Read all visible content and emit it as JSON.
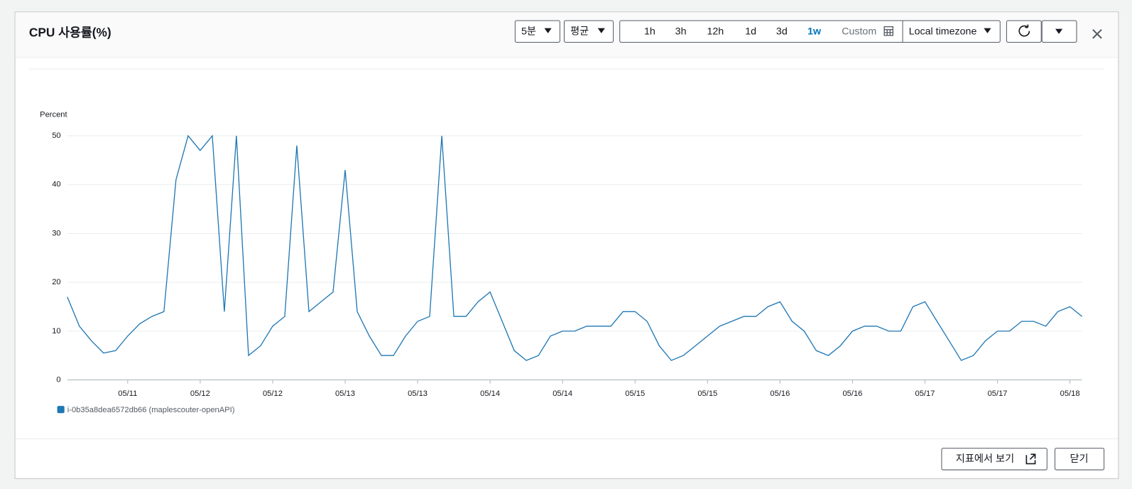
{
  "ui": {
    "title": "CPU 사용률(%)",
    "period": "5분",
    "statistic": "평균",
    "ranges": [
      "1h",
      "3h",
      "12h",
      "1d",
      "3d",
      "1w"
    ],
    "custom": "Custom",
    "timezone": "Local timezone",
    "footer_buttons": [
      "지표에서 보기",
      "닫기"
    ]
  },
  "chart_data": {
    "type": "line",
    "ylabel": "Percent",
    "categories": [
      null,
      null,
      null,
      null,
      null,
      "05/11",
      null,
      null,
      null,
      null,
      null,
      "05/12",
      null,
      null,
      null,
      null,
      null,
      "05/12",
      null,
      null,
      null,
      null,
      null,
      "05/13",
      null,
      null,
      null,
      null,
      null,
      "05/13",
      null,
      null,
      null,
      null,
      null,
      "05/14",
      null,
      null,
      null,
      null,
      null,
      "05/14",
      null,
      null,
      null,
      null,
      null,
      "05/15",
      null,
      null,
      null,
      null,
      null,
      "05/15",
      null,
      null,
      null,
      null,
      null,
      "05/16",
      null,
      null,
      null,
      null,
      null,
      "05/16",
      null,
      null,
      null,
      null,
      null,
      "05/17",
      null,
      null,
      null,
      null,
      null,
      "05/17",
      null,
      null,
      null,
      null,
      null,
      "05/18",
      null
    ],
    "series": [
      {
        "name": "i-0b35a8dea6572db66 (maplescouter-openAPI)",
        "color": "#1f77b4",
        "values": [
          17,
          11,
          8,
          5.5,
          6,
          9,
          11.5,
          13,
          14,
          41,
          50,
          47,
          50,
          14,
          50,
          5,
          7,
          11,
          13,
          48,
          14,
          16,
          18,
          43,
          14,
          9,
          5,
          5,
          9,
          12,
          13,
          50,
          13,
          13,
          16,
          18,
          12,
          6,
          4,
          5,
          9,
          10,
          10,
          11,
          11,
          11,
          14,
          14,
          12,
          7,
          4,
          5,
          7,
          9,
          11,
          12,
          13,
          13,
          15,
          16,
          12,
          10,
          6,
          5,
          7,
          10,
          11,
          11,
          10,
          10,
          15,
          16,
          12,
          8,
          4,
          5,
          8,
          10,
          10,
          12,
          12,
          11,
          14,
          15,
          13
        ]
      }
    ],
    "ylim": [
      0,
      50
    ],
    "yticks": [
      0,
      10,
      20,
      30,
      40,
      50
    ],
    "grid": true
  }
}
